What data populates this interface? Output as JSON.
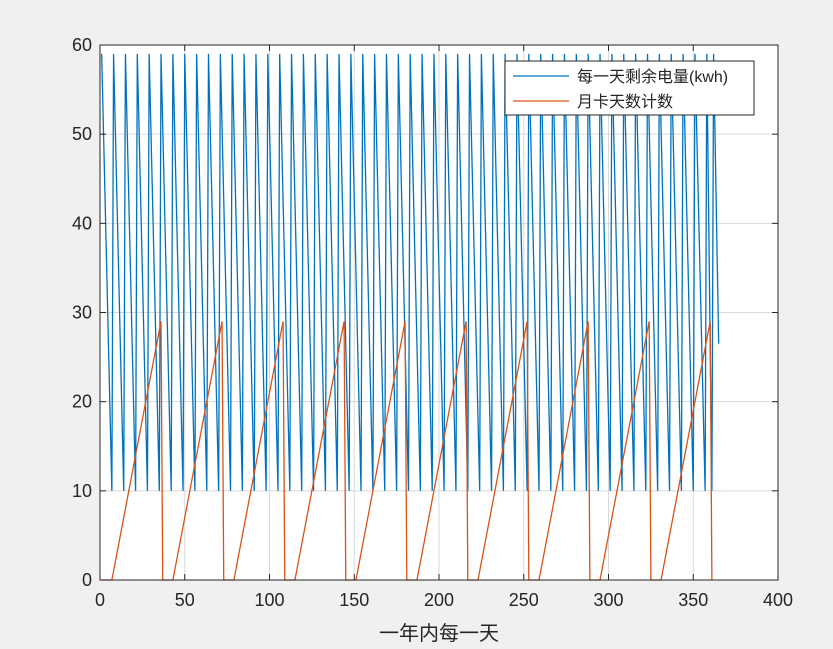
{
  "chart_data": {
    "type": "line",
    "xlabel": "一年内每一天",
    "ylabel": "",
    "title": "",
    "xlim": [
      0,
      400
    ],
    "ylim": [
      0,
      60
    ],
    "xticks": [
      "0",
      "50",
      "100",
      "150",
      "200",
      "250",
      "300",
      "350",
      "400"
    ],
    "yticks": [
      "0",
      "10",
      "20",
      "30",
      "40",
      "50",
      "60"
    ],
    "grid": true,
    "legend_position": "top-right",
    "colors": {
      "series1": "#0072bd",
      "series2": "#d95319",
      "grid": "#d9d9d9",
      "axis": "#262626"
    },
    "series": [
      {
        "name": "每一天剩余电量(kwh)",
        "x": [
          1,
          7,
          8,
          14,
          15,
          21,
          22,
          28,
          29,
          35,
          36,
          42,
          43,
          49,
          50,
          56,
          57,
          63,
          64,
          70,
          71,
          77,
          78,
          84,
          85,
          91,
          92,
          98,
          99,
          105,
          106,
          112,
          113,
          119,
          120,
          126,
          127,
          133,
          134,
          140,
          141,
          147,
          148,
          154,
          155,
          161,
          162,
          168,
          169,
          175,
          176,
          182,
          183,
          189,
          190,
          196,
          197,
          203,
          204,
          210,
          211,
          217,
          218,
          224,
          225,
          231,
          232,
          238,
          239,
          245,
          246,
          252,
          253,
          259,
          260,
          266,
          267,
          273,
          274,
          280,
          281,
          287,
          288,
          294,
          295,
          301,
          302,
          308,
          309,
          315,
          316,
          322,
          323,
          329,
          330,
          336,
          337,
          343,
          344,
          350,
          351,
          357,
          358,
          361,
          362,
          365
        ],
        "values": [
          59,
          10,
          59,
          10,
          59,
          10,
          59,
          10,
          59,
          10,
          59,
          10,
          59,
          10,
          59,
          10,
          59,
          10,
          59,
          10,
          59,
          10,
          59,
          10,
          59,
          10,
          59,
          10,
          59,
          10,
          59,
          10,
          59,
          10,
          59,
          10,
          59,
          10,
          59,
          10,
          59,
          10,
          59,
          10,
          59,
          10,
          59,
          10,
          59,
          10,
          59,
          10,
          59,
          10,
          59,
          10,
          59,
          10,
          59,
          10,
          59,
          10,
          59,
          10,
          59,
          10,
          59,
          10,
          59,
          10,
          59,
          10,
          59,
          10,
          59,
          10,
          59,
          10,
          59,
          10,
          59,
          10,
          59,
          10,
          59,
          10,
          59,
          10,
          59,
          10,
          59,
          10,
          59,
          10,
          59,
          10,
          59,
          10,
          59,
          10,
          59,
          10,
          59,
          10,
          59,
          26.5
        ]
      },
      {
        "name": "月卡天数计数",
        "x": [
          1,
          7,
          36,
          37,
          43,
          72,
          73,
          79,
          108,
          109,
          115,
          144,
          145,
          151,
          180,
          181,
          187,
          216,
          217,
          223,
          252,
          253,
          259,
          288,
          289,
          295,
          324,
          325,
          331,
          360,
          361
        ],
        "values": [
          0,
          0,
          29,
          0,
          0,
          29,
          0,
          0,
          29,
          0,
          0,
          29,
          0,
          0,
          29,
          0,
          0,
          29,
          0,
          0,
          29,
          0,
          0,
          29,
          0,
          0,
          29,
          0,
          0,
          29,
          0
        ]
      }
    ]
  }
}
